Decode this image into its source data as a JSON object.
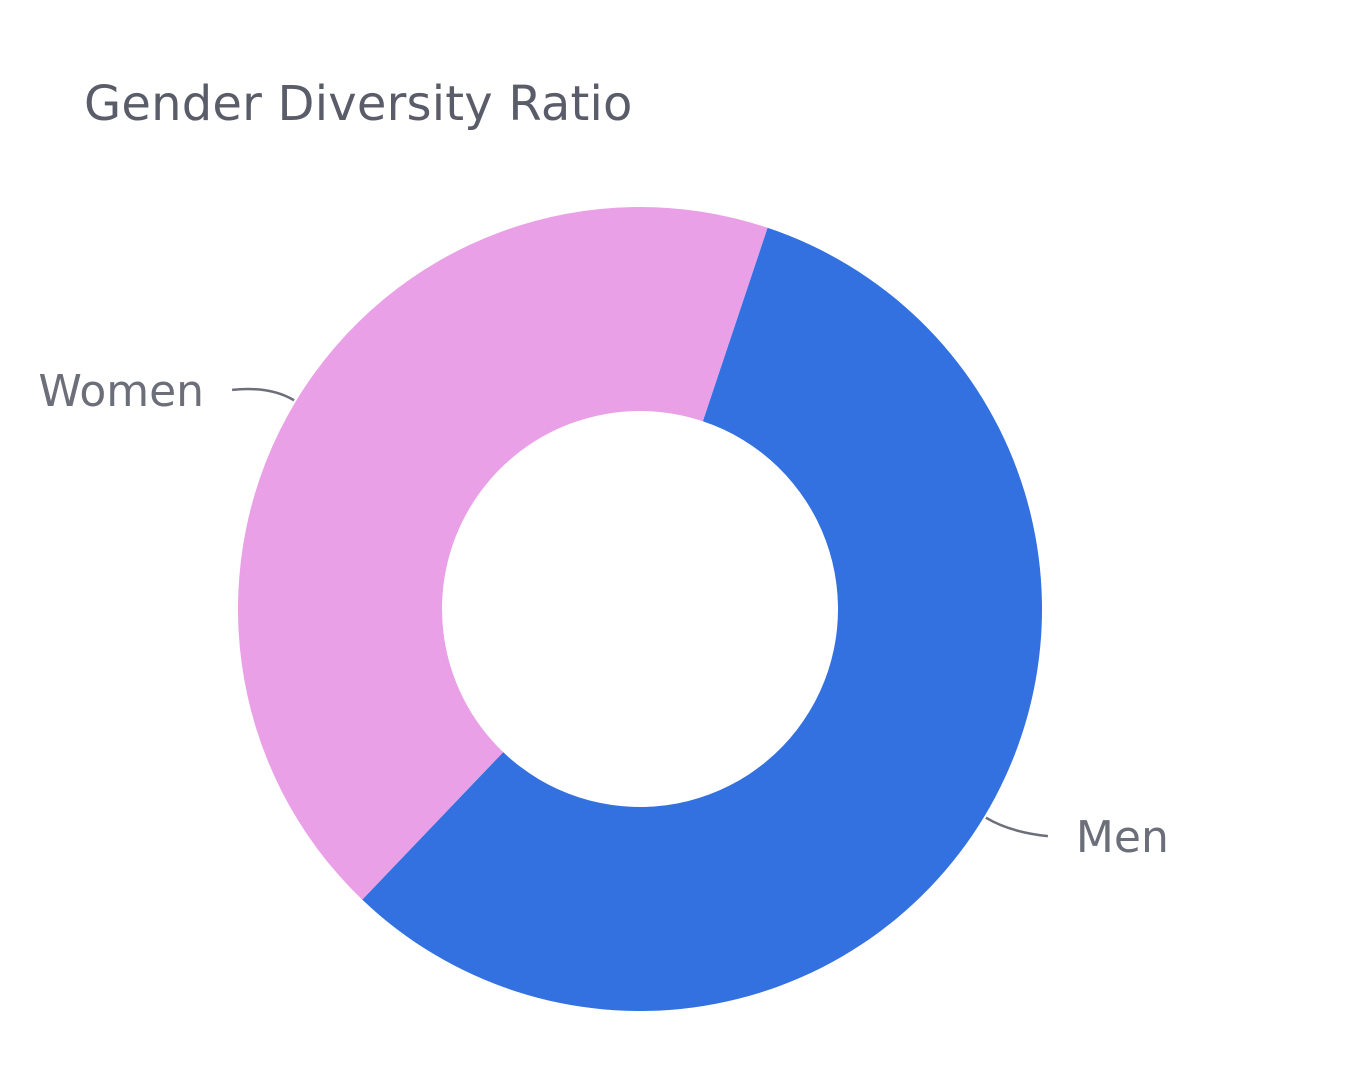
{
  "chart_data": {
    "type": "pie",
    "title": "Gender Diversity Ratio",
    "categories": [
      "Men",
      "Women"
    ],
    "values": [
      57,
      43
    ],
    "colors": [
      "#3371e0",
      "#eaa0e6"
    ],
    "donut": true,
    "legend": "none"
  }
}
